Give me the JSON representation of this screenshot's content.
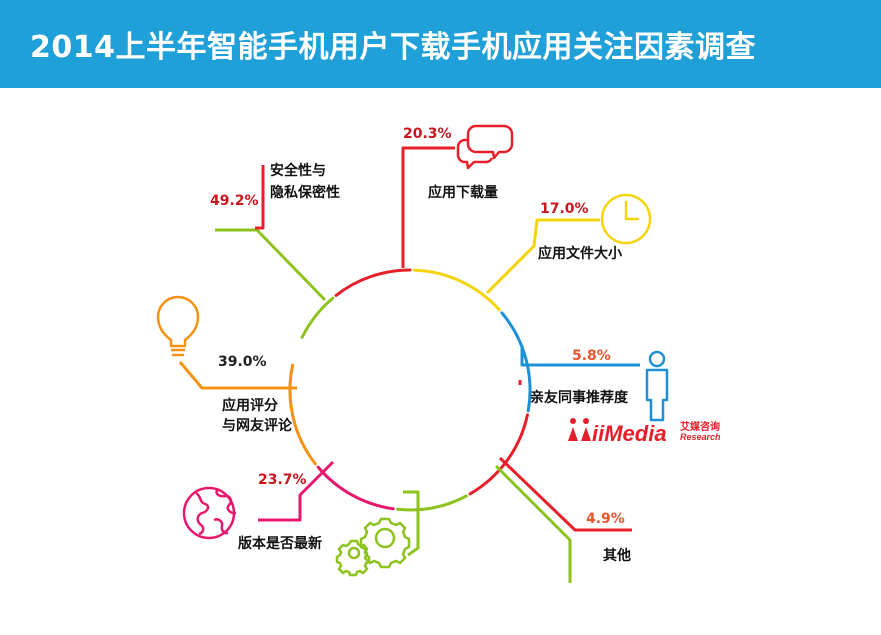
{
  "header": {
    "title": "2014上半年智能手机用户下载手机应用关注因素调查"
  },
  "chart_data": {
    "type": "pie",
    "title": "2014上半年智能手机用户下载手机应用关注因素调查",
    "categories": [
      "安全性与隐私保密性",
      "应用下载量",
      "应用文件大小",
      "亲友同事推荐度",
      "其他",
      "版本是否最新",
      "应用评分与网友评论"
    ],
    "values": [
      49.2,
      20.3,
      17.0,
      5.8,
      4.9,
      23.7,
      39.0
    ],
    "value_labels": [
      "49.2%",
      "20.3%",
      "17.0%",
      "5.8%",
      "4.9%",
      "23.7%",
      "39.0%"
    ],
    "label_lines": [
      [
        "安全性与",
        "隐私保密性"
      ],
      [
        "应用下载量"
      ],
      [
        "应用文件大小"
      ],
      [
        "亲友同事推荐度"
      ],
      [
        "其他"
      ],
      [
        "版本是否最新"
      ],
      [
        "应用评分",
        "与网友评论"
      ]
    ],
    "colors": {
      "safety": "#8dc21f",
      "downloads": "#e6202a",
      "size": "#f5d40c",
      "recommend": "#1e90d6",
      "other": "#8dc21f",
      "version": "#e6186e",
      "rating": "#f39214",
      "pct_red": "#c8161d",
      "pct_orange": "#e8552e"
    },
    "icons": [
      "chat-bubbles-icon",
      "clock-icon",
      "person-icon",
      "globe-icon",
      "gears-icon",
      "lightbulb-icon"
    ]
  },
  "logo": {
    "text": "iiMedia",
    "cn": "艾媒咨询",
    "sub": "Research"
  }
}
